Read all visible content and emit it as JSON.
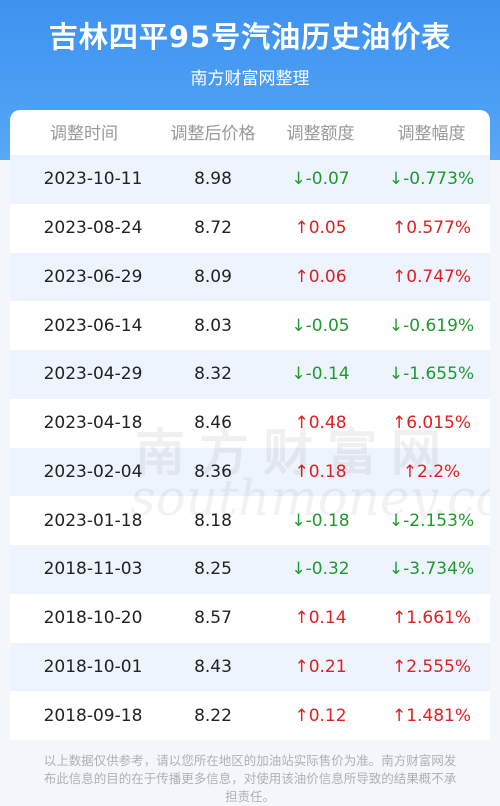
{
  "header": {
    "title": "吉林四平95号汽油历史油价表",
    "subtitle": "南方财富网整理"
  },
  "table": {
    "columns": [
      "调整时间",
      "调整后价格",
      "调整额度",
      "调整幅度"
    ],
    "rows": [
      {
        "date": "2023-10-11",
        "price": "8.98",
        "change": "-0.07",
        "pct": "-0.773%",
        "dir": "down"
      },
      {
        "date": "2023-08-24",
        "price": "8.72",
        "change": "0.05",
        "pct": "0.577%",
        "dir": "up"
      },
      {
        "date": "2023-06-29",
        "price": "8.09",
        "change": "0.06",
        "pct": "0.747%",
        "dir": "up"
      },
      {
        "date": "2023-06-14",
        "price": "8.03",
        "change": "-0.05",
        "pct": "-0.619%",
        "dir": "down"
      },
      {
        "date": "2023-04-29",
        "price": "8.32",
        "change": "-0.14",
        "pct": "-1.655%",
        "dir": "down"
      },
      {
        "date": "2023-04-18",
        "price": "8.46",
        "change": "0.48",
        "pct": "6.015%",
        "dir": "up"
      },
      {
        "date": "2023-02-04",
        "price": "8.36",
        "change": "0.18",
        "pct": "2.2%",
        "dir": "up"
      },
      {
        "date": "2023-01-18",
        "price": "8.18",
        "change": "-0.18",
        "pct": "-2.153%",
        "dir": "down"
      },
      {
        "date": "2018-11-03",
        "price": "8.25",
        "change": "-0.32",
        "pct": "-3.734%",
        "dir": "down"
      },
      {
        "date": "2018-10-20",
        "price": "8.57",
        "change": "0.14",
        "pct": "1.661%",
        "dir": "up"
      },
      {
        "date": "2018-10-01",
        "price": "8.43",
        "change": "0.21",
        "pct": "2.555%",
        "dir": "up"
      },
      {
        "date": "2018-09-18",
        "price": "8.22",
        "change": "0.12",
        "pct": "1.481%",
        "dir": "up"
      }
    ],
    "arrows": {
      "up": "↑",
      "down": "↓"
    }
  },
  "watermark": {
    "cn": "南方财富网",
    "en": "southmoney.com"
  },
  "footer": {
    "disclaimer": "以上数据仅供参考，请以您所在地区的加油站实际售价为准。南方财富网发布此信息的目的在于传播更多信息，对使用该油价信息所导致的结果概不承担责任。"
  },
  "colors": {
    "header_blue": "#4b9ef3",
    "row_stripe": "#eef4fd",
    "up": "#e02020",
    "down": "#1f9a2e"
  }
}
